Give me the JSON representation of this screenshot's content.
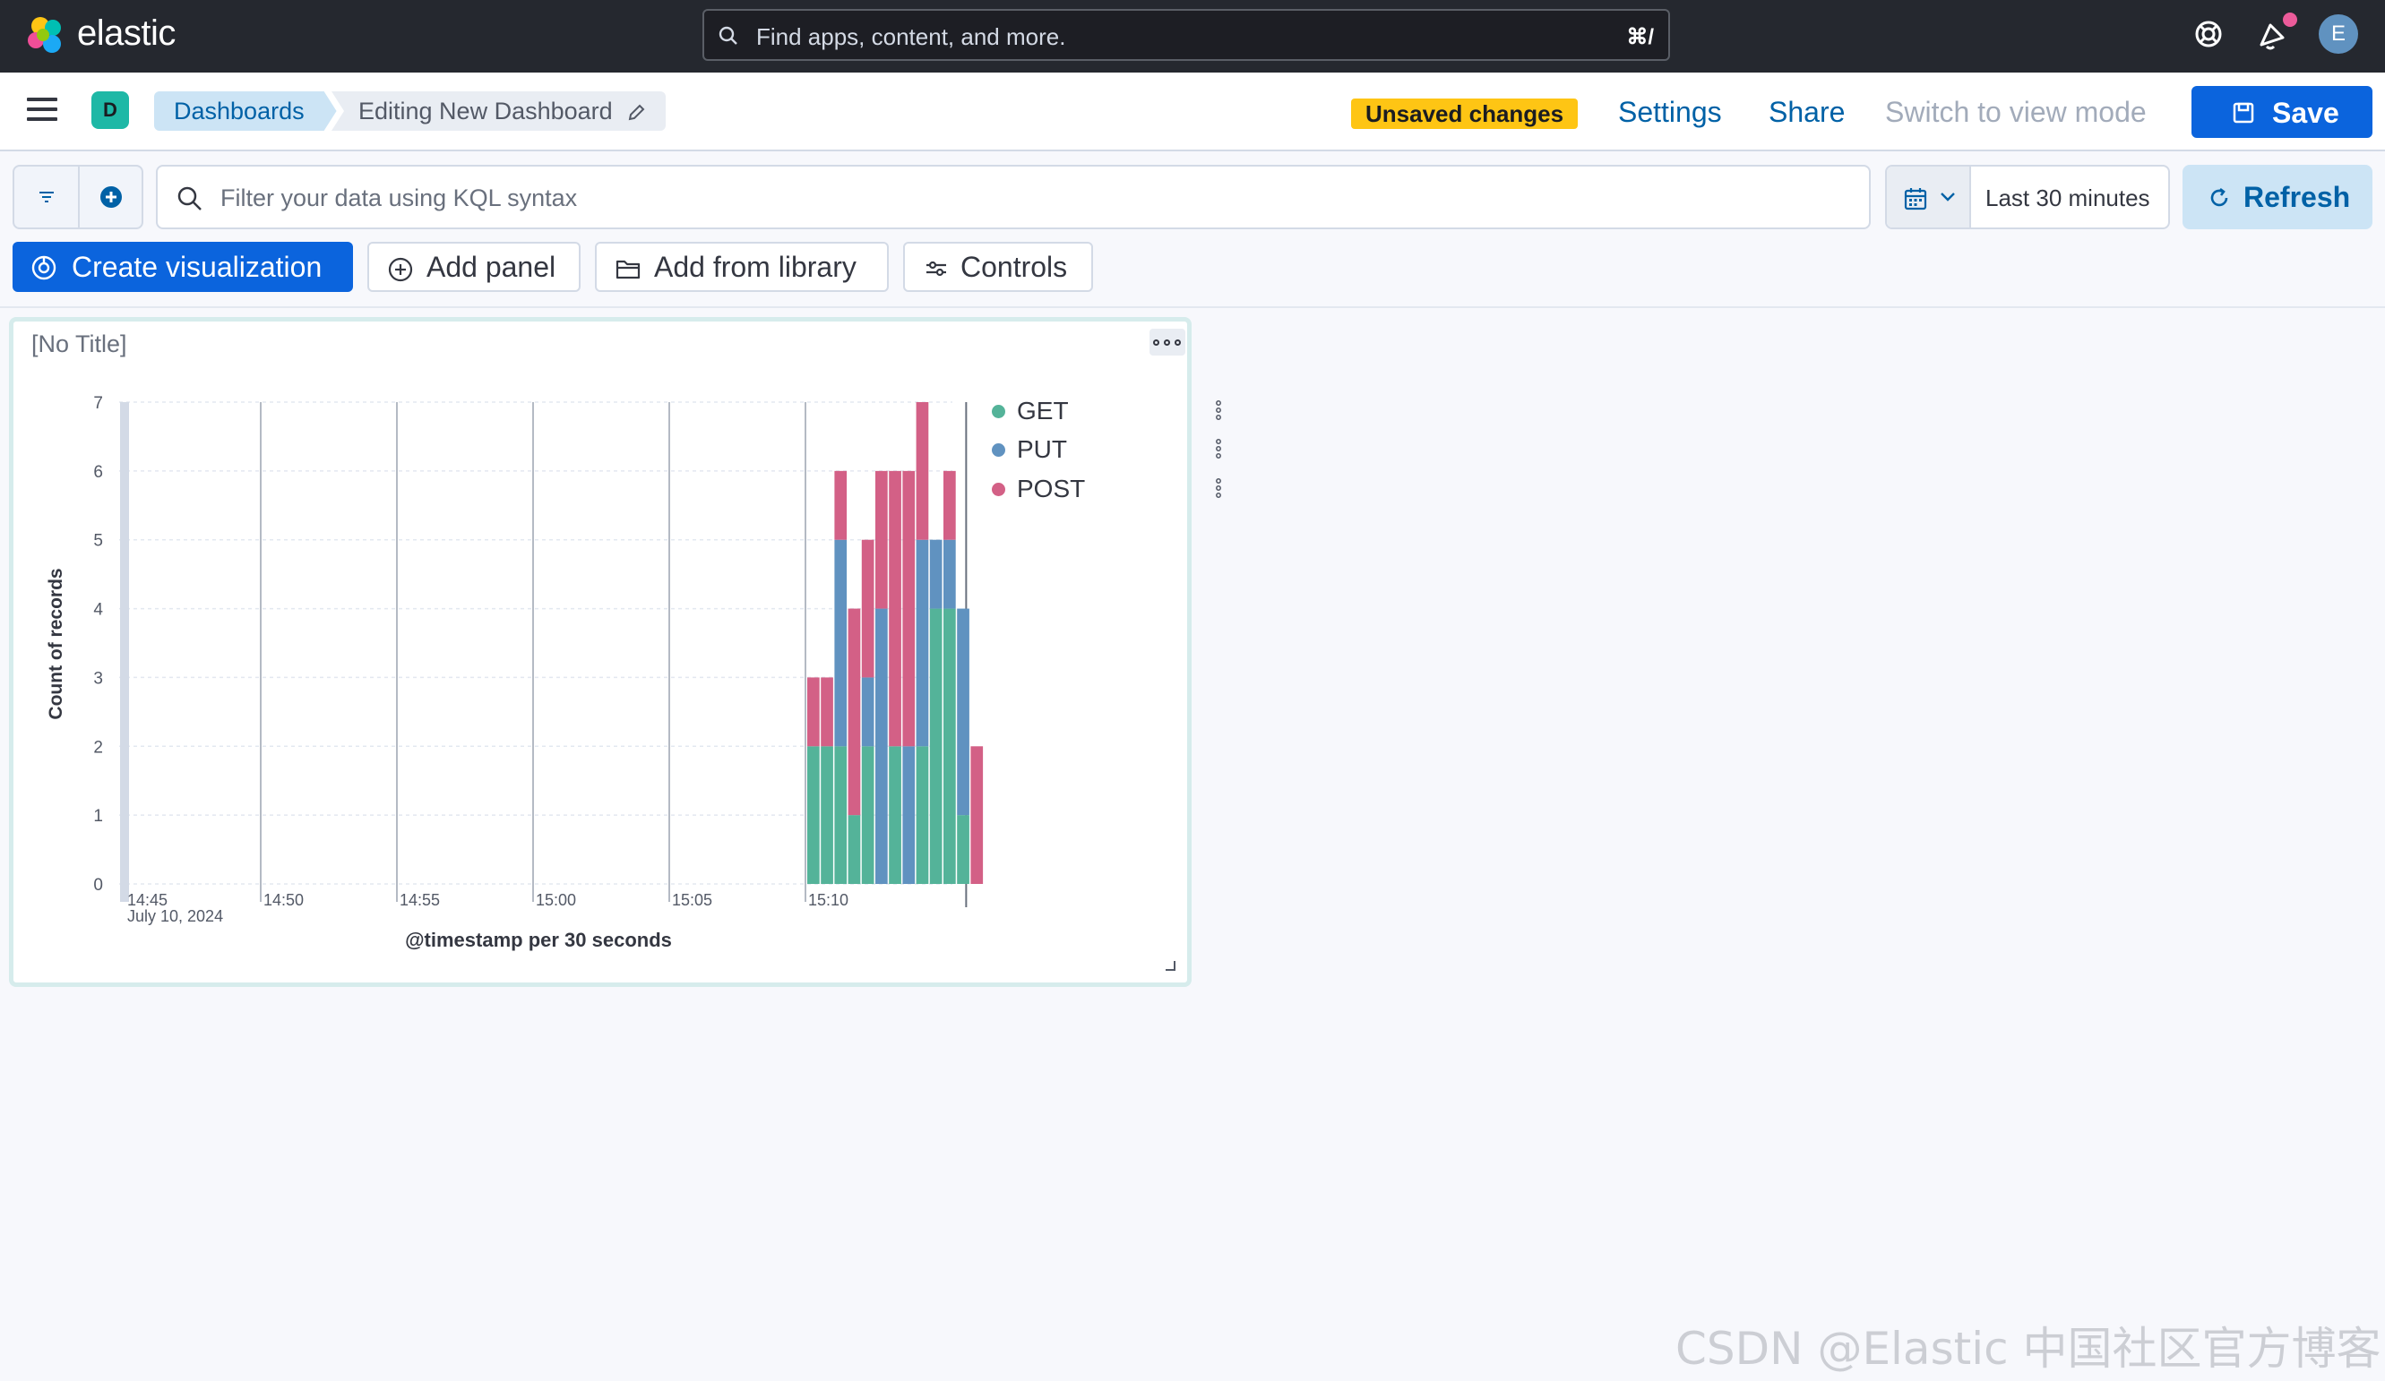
{
  "header": {
    "brand": "elastic",
    "search_placeholder": "Find apps, content, and more.",
    "search_shortcut": "⌘/",
    "avatar_initial": "E"
  },
  "appbar": {
    "space_initial": "D",
    "breadcrumbs": [
      "Dashboards",
      "Editing New Dashboard"
    ],
    "unsaved_label": "Unsaved changes",
    "settings_label": "Settings",
    "share_label": "Share",
    "view_mode_label": "Switch to view mode",
    "save_label": "Save"
  },
  "query": {
    "placeholder": "Filter your data using KQL syntax",
    "time_range": "Last 30 minutes",
    "refresh_label": "Refresh"
  },
  "actions": {
    "create_visualization": "Create visualization",
    "add_panel": "Add panel",
    "add_from_library": "Add from library",
    "controls": "Controls"
  },
  "panel": {
    "title": "[No Title]"
  },
  "chart_data": {
    "type": "bar",
    "stacked": true,
    "title": "[No Title]",
    "xlabel": "@timestamp per 30 seconds",
    "ylabel": "Count of records",
    "ylim": [
      0,
      7
    ],
    "y_ticks": [
      "0",
      "1",
      "2",
      "3",
      "4",
      "5",
      "6",
      "7"
    ],
    "x_ticks": [
      "14:45",
      "14:50",
      "14:55",
      "15:00",
      "15:05",
      "15:10"
    ],
    "x_date_label": "July 10, 2024",
    "grid": true,
    "legend_position": "right",
    "categories": [
      "15:10:00",
      "15:10:30",
      "15:11:00",
      "15:11:30",
      "15:12:00",
      "15:12:30",
      "15:13:00",
      "15:13:30",
      "15:14:00",
      "15:14:30",
      "15:15:00",
      "15:15:30",
      "15:16:00"
    ],
    "series": [
      {
        "name": "GET",
        "color": "#54b399",
        "values": [
          2,
          2,
          2,
          1,
          2,
          0,
          2,
          0,
          2,
          4,
          4,
          1,
          0
        ]
      },
      {
        "name": "PUT",
        "color": "#6092c0",
        "values": [
          0,
          0,
          3,
          0,
          1,
          4,
          0,
          2,
          3,
          1,
          1,
          3,
          0
        ]
      },
      {
        "name": "POST",
        "color": "#d36086",
        "values": [
          1,
          1,
          1,
          3,
          2,
          2,
          4,
          4,
          2,
          0,
          1,
          0,
          2
        ]
      }
    ]
  },
  "watermark": "CSDN @Elastic 中国社区官方博客"
}
